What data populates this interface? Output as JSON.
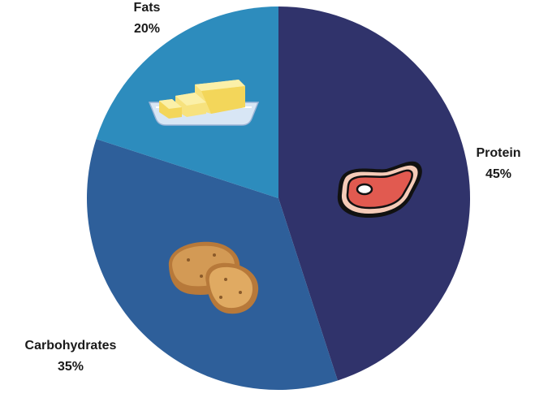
{
  "chart_data": {
    "type": "pie",
    "categories": [
      "Protein",
      "Carbohydrates",
      "Fats"
    ],
    "values": [
      45,
      35,
      20
    ],
    "value_labels": [
      "45%",
      "35%",
      "20%"
    ],
    "colors": [
      "#30336b",
      "#2e5f9a",
      "#2d8cbd"
    ],
    "icons": [
      "steak-icon",
      "potatoes-icon",
      "butter-icon"
    ],
    "start": "top, clockwise",
    "legend": "none"
  }
}
